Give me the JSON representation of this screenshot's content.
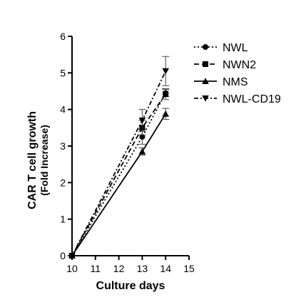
{
  "chart_data": {
    "type": "line",
    "xlabel": "Culture days",
    "ylabel": "CAR T cell growth",
    "ylabel_sub": "(Fold Increase)",
    "xlim": [
      10,
      15
    ],
    "ylim": [
      0,
      6
    ],
    "x_ticks": [
      "10",
      "11",
      "12",
      "13",
      "14",
      "15"
    ],
    "y_ticks": [
      "0",
      "1",
      "2",
      "3",
      "4",
      "5",
      "6"
    ],
    "grid": false,
    "legend_position": "top-right",
    "series": [
      {
        "name": "NWL",
        "marker": "circle",
        "line_style": "dotted",
        "points": [
          {
            "x": 10,
            "y": 0,
            "err": 0
          },
          {
            "x": 13,
            "y": 3.25,
            "err": 0.2
          },
          {
            "x": 14,
            "y": 4.45,
            "err": 0.1
          }
        ]
      },
      {
        "name": "NWN2",
        "marker": "square",
        "line_style": "dashed",
        "points": [
          {
            "x": 10,
            "y": 0,
            "err": 0
          },
          {
            "x": 13,
            "y": 3.5,
            "err": 0.2
          },
          {
            "x": 14,
            "y": 4.42,
            "err": 0.15
          }
        ]
      },
      {
        "name": "NMS",
        "marker": "triangle-up",
        "line_style": "solid",
        "points": [
          {
            "x": 10,
            "y": 0,
            "err": 0
          },
          {
            "x": 13,
            "y": 2.85,
            "err": 0.1
          },
          {
            "x": 14,
            "y": 3.88,
            "err": 0.15
          }
        ]
      },
      {
        "name": "NWL-CD19",
        "marker": "triangle-down",
        "line_style": "dash-dot",
        "points": [
          {
            "x": 10,
            "y": 0,
            "err": 0
          },
          {
            "x": 13,
            "y": 3.7,
            "err": 0.3
          },
          {
            "x": 14,
            "y": 5.05,
            "err": 0.4
          }
        ]
      }
    ]
  }
}
